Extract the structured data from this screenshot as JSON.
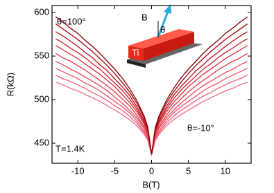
{
  "chart_data": {
    "type": "line",
    "x_label": "B(T)",
    "y_label": "R(kΩ)",
    "annotations": [
      "θ=100°",
      "θ=-10°",
      "T=1.4K"
    ],
    "inset_labels": [
      "B",
      "θ",
      "Ti"
    ],
    "x": [
      -13,
      -12,
      -11,
      -10,
      -9,
      -8,
      -7,
      -6,
      -5,
      -4,
      -3,
      -2,
      -1,
      -0.5,
      0,
      0.5,
      1,
      2,
      3,
      4,
      5,
      6,
      7,
      8,
      9,
      10,
      11,
      12,
      13
    ],
    "series": [
      {
        "color": "#f4708e",
        "values": [
          520,
          517,
          513,
          510,
          506,
          502,
          498,
          493,
          488,
          483,
          477,
          470,
          460,
          453,
          437,
          453,
          460,
          470,
          477,
          483,
          488,
          493,
          498,
          502,
          506,
          510,
          513,
          517,
          520
        ]
      },
      {
        "color": "#f2657f",
        "values": [
          528,
          524,
          521,
          517,
          513,
          508,
          504,
          499,
          493,
          488,
          481,
          473,
          462,
          455,
          437,
          455,
          462,
          473,
          481,
          488,
          493,
          499,
          504,
          508,
          513,
          517,
          521,
          524,
          528
        ]
      },
      {
        "color": "#ee5a70",
        "values": [
          536,
          532,
          528,
          524,
          519,
          515,
          510,
          504,
          498,
          492,
          485,
          476,
          464,
          456,
          437,
          456,
          464,
          476,
          485,
          492,
          498,
          504,
          510,
          515,
          519,
          524,
          528,
          532,
          536
        ]
      },
      {
        "color": "#ea4e60",
        "values": [
          544,
          540,
          535,
          531,
          526,
          521,
          516,
          510,
          503,
          496,
          488,
          479,
          467,
          458,
          437,
          458,
          467,
          479,
          488,
          496,
          503,
          510,
          516,
          521,
          526,
          531,
          535,
          540,
          544
        ]
      },
      {
        "color": "#e44250",
        "values": [
          553,
          548,
          544,
          539,
          534,
          528,
          522,
          516,
          509,
          501,
          493,
          482,
          469,
          460,
          437,
          460,
          469,
          482,
          493,
          501,
          509,
          516,
          522,
          528,
          534,
          539,
          544,
          548,
          553
        ]
      },
      {
        "color": "#dc3440",
        "values": [
          562,
          557,
          552,
          547,
          541,
          535,
          529,
          522,
          515,
          506,
          497,
          486,
          472,
          462,
          437,
          462,
          472,
          486,
          497,
          506,
          515,
          522,
          529,
          535,
          541,
          547,
          552,
          557,
          562
        ]
      },
      {
        "color": "#cf2632",
        "values": [
          570,
          565,
          559,
          554,
          548,
          541,
          535,
          527,
          519,
          511,
          501,
          489,
          474,
          463,
          437,
          463,
          474,
          489,
          501,
          511,
          519,
          527,
          535,
          541,
          548,
          554,
          559,
          565,
          570
        ]
      },
      {
        "color": "#bf1a24",
        "values": [
          578,
          573,
          567,
          561,
          554,
          548,
          540,
          533,
          524,
          515,
          505,
          492,
          476,
          465,
          437,
          465,
          476,
          492,
          505,
          515,
          524,
          533,
          540,
          548,
          554,
          561,
          567,
          573,
          578
        ]
      },
      {
        "color": "#a80f16",
        "values": [
          587,
          581,
          575,
          569,
          562,
          555,
          547,
          539,
          530,
          520,
          509,
          496,
          479,
          466,
          437,
          466,
          479,
          496,
          509,
          520,
          530,
          539,
          547,
          555,
          562,
          569,
          575,
          581,
          587
        ]
      },
      {
        "color": "#8b0a0a",
        "values": [
          595,
          589,
          582,
          576,
          568,
          561,
          553,
          544,
          535,
          525,
          513,
          499,
          481,
          468,
          437,
          468,
          481,
          499,
          513,
          525,
          535,
          544,
          553,
          561,
          568,
          576,
          582,
          589,
          595
        ]
      }
    ],
    "xlim": [
      -13.5,
      13.5
    ],
    "ylim": [
      427,
      608
    ],
    "xticks": [
      -10,
      -5,
      0,
      5,
      10
    ],
    "yticks": [
      450,
      500,
      550,
      600
    ]
  }
}
